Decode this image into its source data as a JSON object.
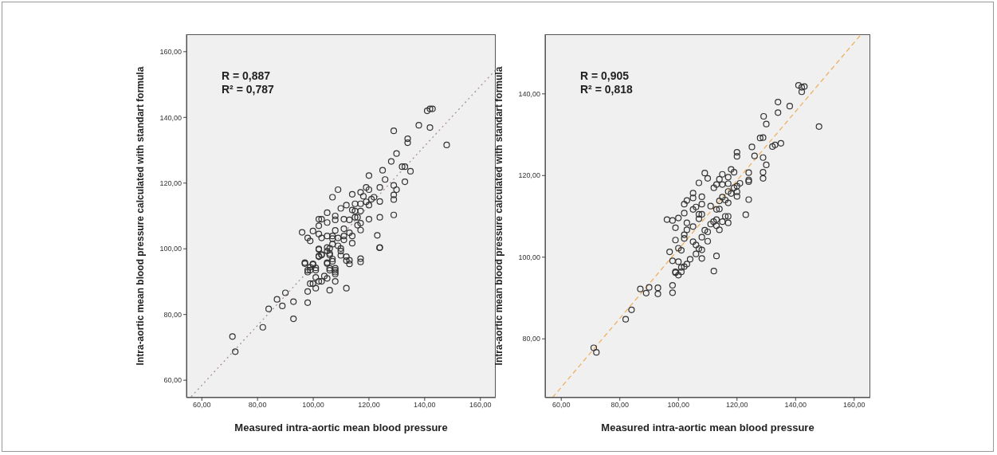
{
  "chart_data": [
    {
      "type": "scatter",
      "xlabel": "Measured intra-aortic mean blood pressure",
      "ylabel": "Intra-aortic mean blood pressure calculated with standart formula",
      "annotations": [
        "R = 0,887",
        "R² = 0,787"
      ],
      "xlim": [
        54.5,
        165.5
      ],
      "ylim": [
        54.7,
        165.3
      ],
      "xticks": [
        {
          "value": 60,
          "label": "60,00"
        },
        {
          "value": 80,
          "label": "80,00"
        },
        {
          "value": 100,
          "label": "100,00"
        },
        {
          "value": 120,
          "label": "120,00"
        },
        {
          "value": 140,
          "label": "140,00"
        },
        {
          "value": 160,
          "label": "160,00"
        }
      ],
      "yticks": [
        {
          "value": 60,
          "label": "60,00"
        },
        {
          "value": 80,
          "label": "80,00"
        },
        {
          "value": 100,
          "label": "100,00"
        },
        {
          "value": 120,
          "label": "120,00"
        },
        {
          "value": 140,
          "label": "140,00"
        },
        {
          "value": 160,
          "label": "160,00"
        }
      ],
      "series": [
        {
          "marker": "circle",
          "color": "#333333",
          "x": [
            140.9,
            141.9,
            142.8,
            137.9,
            141.9,
            147.9,
            128.9,
            133.9,
            133.9,
            129.9,
            128.0,
            131.9,
            132.9,
            134.9,
            124.9,
            132.9,
            125.8,
            120.0,
            128.9,
            129.9,
            128.9,
            128.9,
            128.9,
            123.9,
            123.9,
            123.9,
            123.0,
            123.9,
            121.8,
            120.9,
            119.0,
            120.0,
            120.0,
            120.0,
            117.0,
            118.0,
            115.0,
            117.0,
            119.0,
            114.0,
            117.0,
            115.0,
            114.0,
            115.0,
            115.9,
            117.0,
            115.9,
            117.0,
            113.0,
            111.0,
            111.9,
            109.9,
            106.9,
            108.9,
            107.9,
            107.9,
            105.0,
            102.0,
            103.0,
            105.0,
            102.0,
            107.9,
            111.0,
            113.0,
            114.0,
            114.0,
            117.0,
            111.9,
            113.0,
            96.0,
            98.0,
            98.9,
            99.9,
            102.0,
            103.0,
            105.0,
            106.9,
            106.9,
            108.9,
            111.0,
            111.0,
            108.9,
            109.9,
            109.9,
            109.9,
            106.9,
            105.9,
            105.0,
            105.9,
            106.9,
            105.0,
            103.0,
            102.0,
            102.0,
            97.0,
            98.0,
            99.9,
            98.9,
            100.9,
            105.9,
            107.9,
            107.9,
            102.0,
            105.0,
            105.9,
            103.0,
            102.0,
            106.9,
            105.0,
            111.9,
            113.0,
            117.0,
            123.8,
            97.0,
            99.9,
            98.0,
            98.9,
            100.9,
            105.9,
            107.9,
            107.9,
            104.0,
            105.0,
            100.9,
            98.9,
            99.9,
            102.0,
            103.0,
            107.9,
            100.9,
            105.9,
            111.9,
            98.0,
            98.0,
            92.9,
            90.0,
            87.0,
            88.9,
            84.0,
            92.9,
            81.9,
            71.0,
            72.0
          ],
          "values": [
            142.0,
            142.6,
            142.6,
            137.6,
            136.9,
            131.6,
            135.9,
            133.5,
            132.3,
            129.0,
            126.6,
            125.0,
            125.0,
            123.6,
            123.9,
            120.4,
            121.1,
            122.3,
            119.3,
            118.0,
            116.4,
            115.0,
            110.3,
            118.7,
            114.4,
            109.6,
            104.1,
            100.4,
            115.7,
            115.1,
            118.7,
            118.0,
            113.3,
            109.0,
            117.2,
            116.0,
            113.7,
            113.7,
            114.3,
            116.6,
            111.5,
            111.5,
            111.8,
            109.6,
            109.6,
            107.8,
            107.2,
            105.7,
            108.8,
            109.0,
            113.3,
            112.3,
            115.7,
            118.0,
            110.0,
            108.8,
            111.0,
            109.0,
            109.0,
            108.0,
            107.0,
            105.6,
            106.1,
            104.9,
            103.9,
            101.7,
            97.0,
            97.6,
            96.5,
            105.0,
            103.3,
            102.4,
            105.4,
            104.5,
            103.3,
            103.9,
            103.9,
            103.1,
            103.3,
            103.9,
            102.7,
            100.9,
            100.1,
            99.3,
            98.0,
            101.4,
            100.1,
            99.3,
            98.1,
            96.9,
            95.8,
            98.1,
            97.6,
            99.8,
            95.8,
            93.5,
            95.4,
            94.4,
            94.2,
            94.1,
            94.1,
            92.9,
            100.0,
            100.4,
            98.6,
            98.3,
            97.8,
            96.2,
            95.5,
            96.4,
            95.4,
            96.0,
            100.3,
            95.5,
            95.2,
            92.9,
            93.5,
            93.5,
            93.5,
            93.5,
            92.3,
            91.7,
            91.0,
            91.3,
            89.4,
            89.4,
            90.1,
            90.1,
            90.1,
            88.0,
            87.4,
            88.0,
            87.0,
            83.6,
            83.9,
            86.6,
            84.6,
            82.6,
            81.7,
            78.7,
            76.1,
            73.3,
            68.7
          ]
        },
        {
          "type": "line",
          "color": "#a88ca8",
          "line_style": "dotted",
          "x": [
            56.2,
            165.5
          ],
          "values": [
            55,
            154.5
          ]
        }
      ]
    },
    {
      "type": "scatter",
      "xlabel": "Measured intra-aortic mean blood pressure",
      "ylabel": "Intra-aortic mean blood pressure calculated with standart formula",
      "annotations": [
        "R = 0,905",
        "R² = 0,818"
      ],
      "xlim": [
        54.5,
        165.5
      ],
      "ylim": [
        65.6,
        154.6
      ],
      "xticks": [
        {
          "value": 60,
          "label": "60,00"
        },
        {
          "value": 80,
          "label": "80,00"
        },
        {
          "value": 100,
          "label": "100,00"
        },
        {
          "value": 120,
          "label": "120,00"
        },
        {
          "value": 140,
          "label": "140,00"
        },
        {
          "value": 160,
          "label": "160,00"
        }
      ],
      "yticks": [
        {
          "value": 80,
          "label": "80,00"
        },
        {
          "value": 100,
          "label": "100,00"
        },
        {
          "value": 120,
          "label": "120,00"
        },
        {
          "value": 140,
          "label": "140,00"
        }
      ],
      "series": [
        {
          "marker": "circle",
          "color": "#333333",
          "x": [
            141.0,
            142.1,
            143.0,
            142.1,
            134.0,
            134.0,
            138.0,
            129.1,
            130.0,
            148.0,
            127.9,
            128.9,
            132.1,
            133.0,
            135.0,
            125.1,
            120.0,
            120.0,
            126.0,
            128.9,
            130.0,
            128.9,
            128.9,
            124.0,
            124.0,
            124.0,
            124.0,
            123.0,
            118.0,
            119.0,
            121.0,
            120.0,
            120.0,
            119.0,
            120.0,
            118.0,
            117.0,
            115.0,
            114.0,
            113.0,
            112.1,
            115.0,
            117.0,
            117.0,
            115.0,
            116.0,
            117.0,
            114.0,
            114.0,
            113.0,
            111.0,
            117.0,
            116.0,
            115.0,
            117.0,
            113.0,
            112.0,
            111.0,
            113.0,
            114.0,
            109.0,
            110.0,
            107.0,
            105.0,
            105.0,
            108.0,
            102.0,
            102.9,
            106.0,
            108.0,
            105.0,
            107.0,
            102.0,
            107.0,
            108.0,
            96.1,
            98.0,
            100.0,
            102.9,
            105.0,
            99.0,
            102.9,
            109.0,
            110.0,
            108.0,
            110.0,
            102.0,
            102.0,
            99.0,
            100.0,
            105.0,
            106.0,
            107.0,
            108.0,
            106.0,
            108.0,
            113.0,
            97.0,
            101.0,
            98.0,
            100.0,
            104.0,
            112.1,
            101.0,
            99.0,
            102.0,
            102.9,
            99.0,
            100.0,
            101.0,
            98.0,
            98.0,
            93.0,
            93.0,
            90.0,
            89.0,
            87.0,
            84.0,
            82.0,
            71.1,
            72.0
          ],
          "values": [
            142.1,
            141.6,
            141.8,
            140.5,
            138.0,
            135.4,
            137.0,
            134.5,
            132.6,
            132.0,
            129.2,
            129.3,
            127.1,
            127.5,
            127.9,
            127.0,
            125.7,
            124.7,
            124.8,
            124.4,
            122.6,
            120.8,
            119.3,
            120.7,
            118.9,
            118.5,
            114.1,
            110.4,
            121.5,
            120.8,
            118.1,
            117.4,
            116.0,
            117.0,
            114.9,
            115.6,
            119.6,
            120.3,
            119.1,
            117.8,
            117.0,
            117.8,
            118.0,
            116.1,
            114.7,
            114.0,
            113.3,
            113.8,
            111.8,
            111.7,
            112.5,
            110.0,
            110.0,
            108.7,
            108.4,
            109.2,
            108.7,
            108.1,
            107.7,
            106.7,
            120.6,
            119.3,
            118.2,
            115.7,
            114.5,
            114.8,
            113.0,
            113.9,
            112.3,
            113.0,
            111.7,
            110.5,
            110.8,
            109.4,
            110.5,
            109.2,
            109.0,
            109.6,
            108.4,
            107.5,
            107.2,
            106.7,
            106.6,
            106.2,
            104.9,
            103.9,
            105.5,
            104.6,
            104.2,
            102.2,
            103.8,
            103.0,
            102.1,
            101.8,
            100.8,
            99.7,
            100.3,
            101.3,
            101.7,
            99.1,
            98.9,
            99.5,
            96.6,
            97.5,
            96.4,
            97.7,
            98.3,
            96.2,
            95.6,
            96.4,
            93.1,
            91.3,
            92.5,
            91.0,
            92.6,
            91.2,
            92.2,
            87.1,
            84.8,
            77.8,
            76.7
          ]
        },
        {
          "type": "line",
          "color": "#f0b060",
          "line_style": "dashed",
          "x": [
            57.0,
            162.4
          ],
          "values": [
            65.6,
            154.6
          ]
        }
      ]
    }
  ]
}
